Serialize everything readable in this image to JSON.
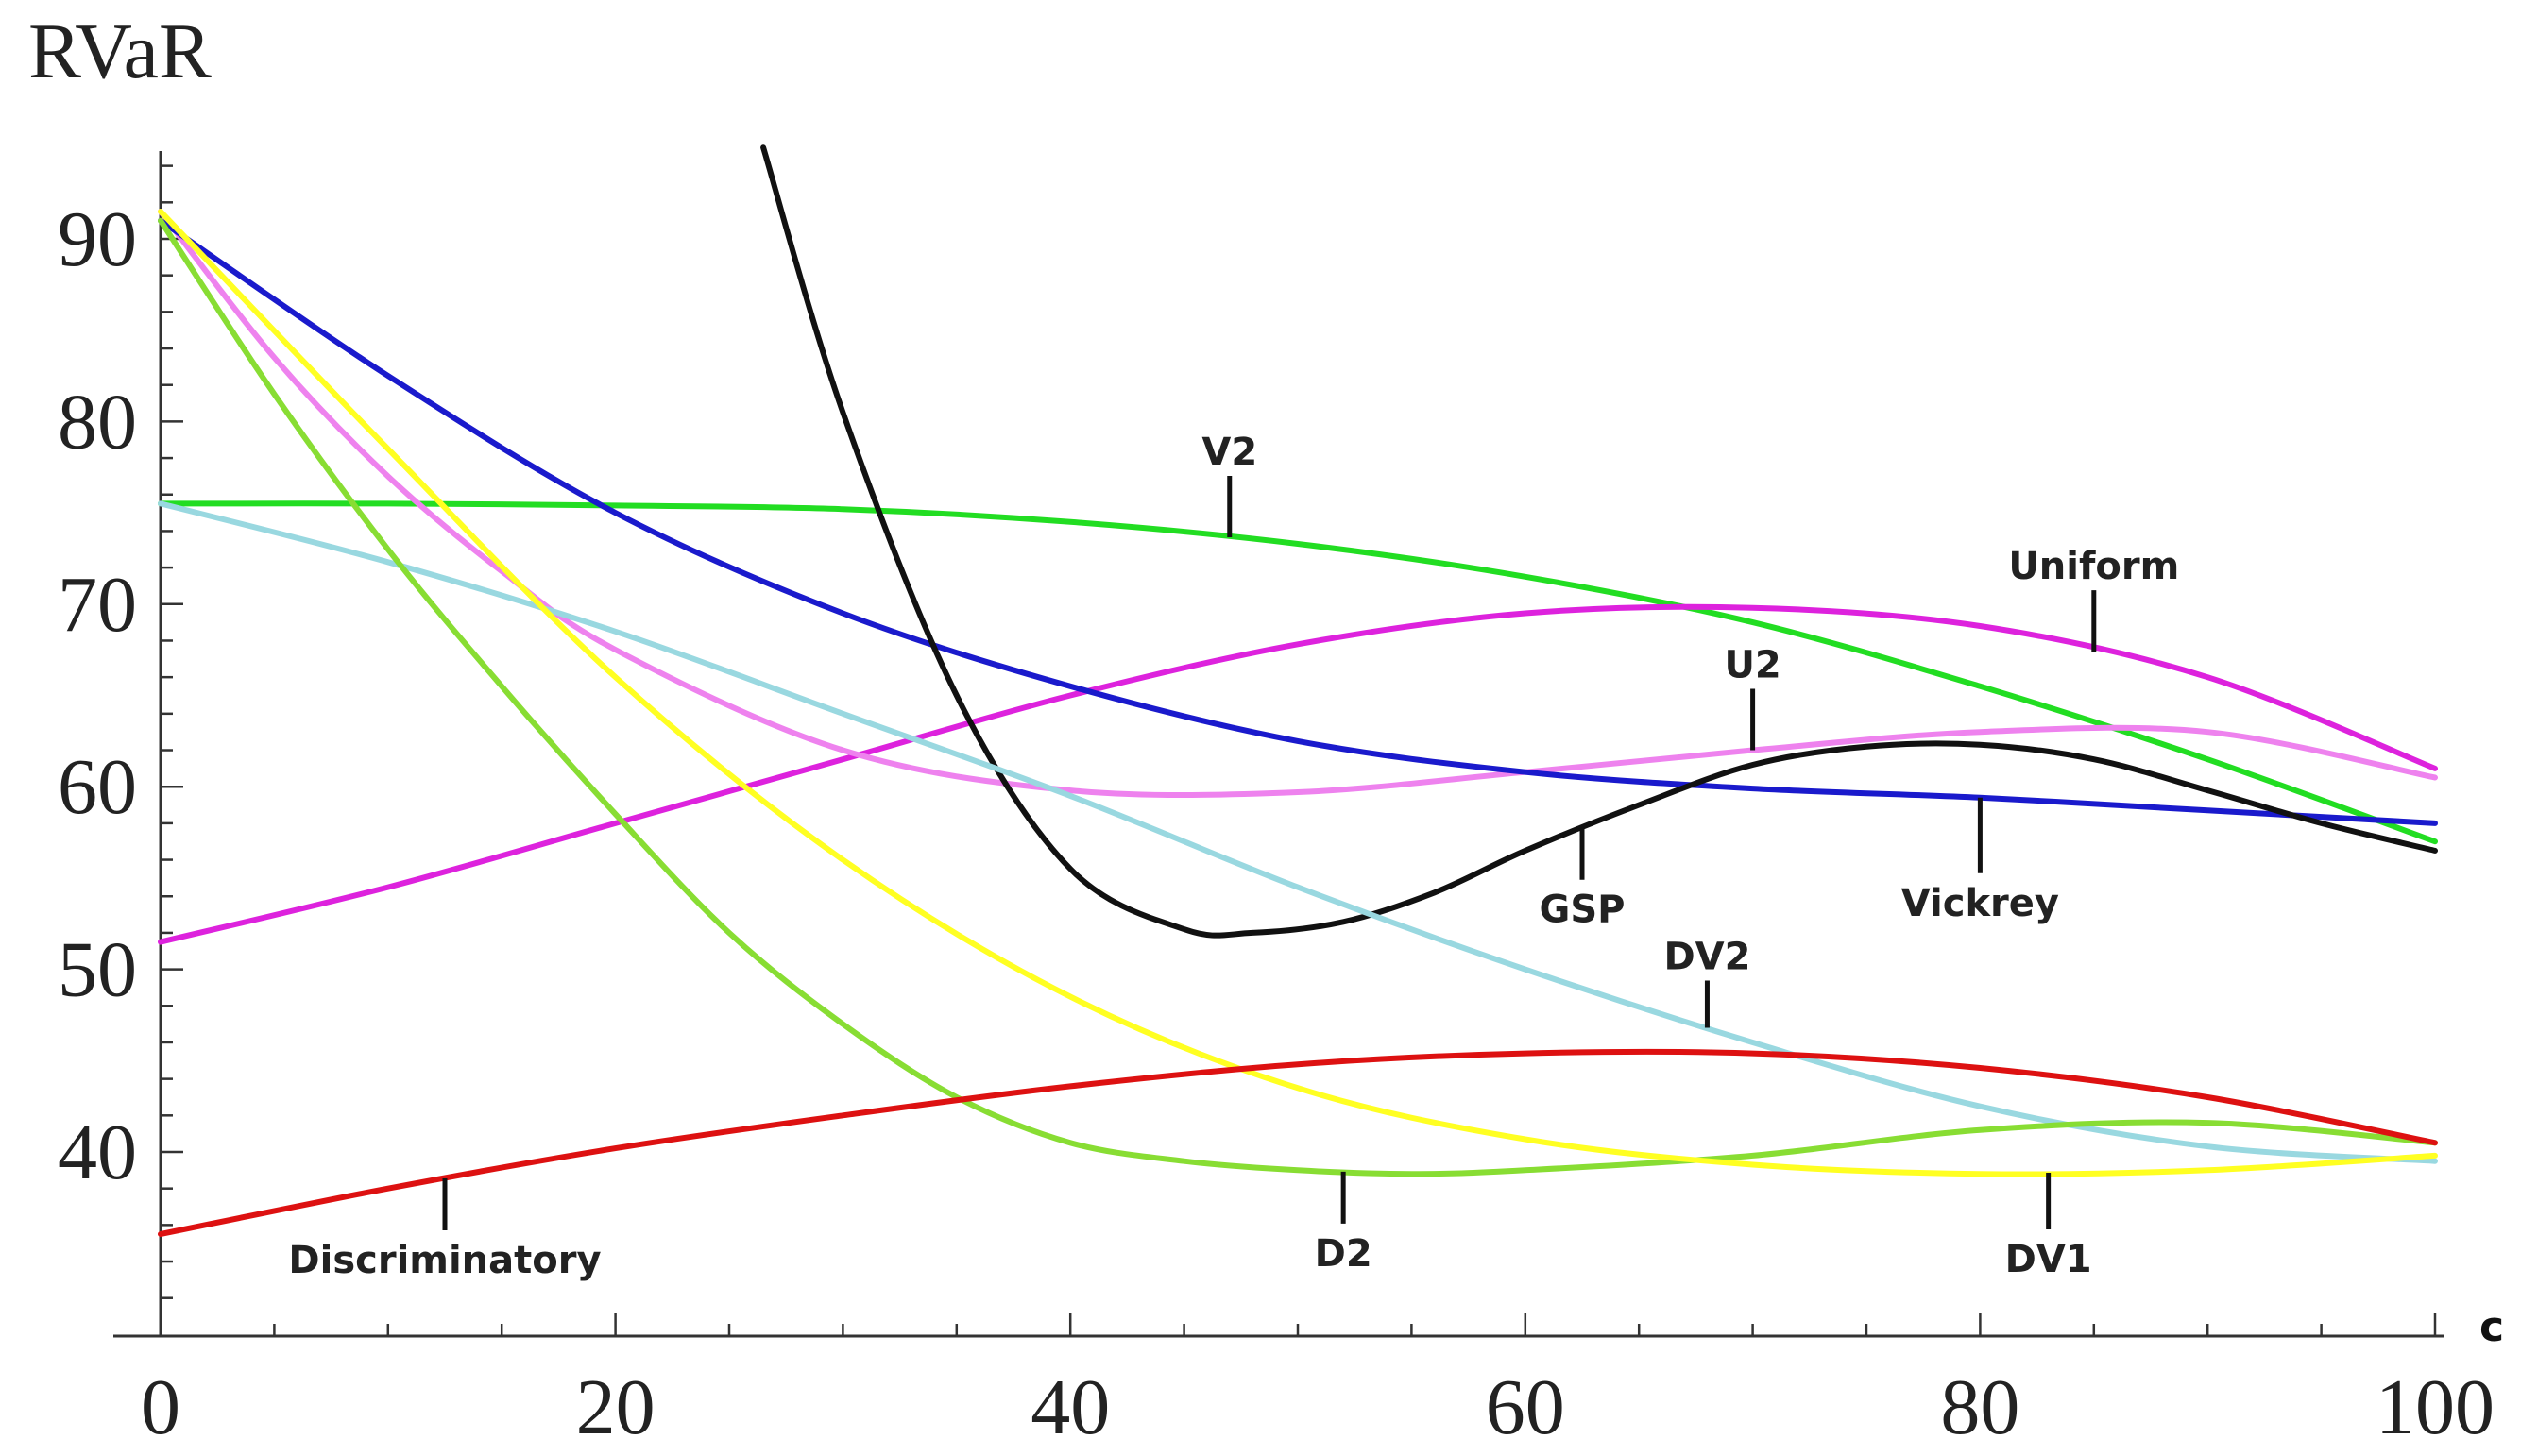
{
  "chart_data": {
    "type": "line",
    "title": "",
    "xlabel": "c",
    "ylabel": "RVaR",
    "xlim": [
      0,
      100
    ],
    "ylim": [
      30,
      95
    ],
    "x_ticks": [
      0,
      20,
      40,
      60,
      80,
      100
    ],
    "y_ticks": [
      40,
      50,
      60,
      70,
      80,
      90
    ],
    "grid": false,
    "legend": "inline labels with leader lines",
    "series": [
      {
        "name": "V2",
        "color": "#22dd22",
        "x": [
          0,
          10,
          20,
          30,
          40,
          50,
          60,
          70,
          80,
          90,
          100
        ],
        "y": [
          75.5,
          75.5,
          75.4,
          75.2,
          74.5,
          73.3,
          71.5,
          69.0,
          65.5,
          61.5,
          57.0
        ]
      },
      {
        "name": "Uniform",
        "color": "#dd22dd",
        "x": [
          0,
          10,
          20,
          30,
          40,
          50,
          60,
          70,
          80,
          90,
          100
        ],
        "y": [
          51.5,
          54.5,
          58.0,
          61.5,
          65.0,
          67.8,
          69.5,
          69.8,
          68.8,
          66.0,
          61.0
        ]
      },
      {
        "name": "U2",
        "color": "#ee82ee",
        "x": [
          0,
          5,
          10,
          15,
          20,
          30,
          40,
          50,
          60,
          70,
          80,
          90,
          100
        ],
        "y": [
          91.5,
          83.5,
          77.0,
          71.8,
          67.5,
          62.0,
          59.8,
          59.7,
          60.8,
          62.0,
          63.0,
          63.0,
          60.5
        ]
      },
      {
        "name": "Vickrey",
        "color": "#1a1acc",
        "x": [
          0,
          10,
          20,
          30,
          40,
          50,
          60,
          70,
          80,
          90,
          100
        ],
        "y": [
          91.0,
          82.5,
          75.0,
          69.5,
          65.5,
          62.5,
          60.8,
          59.9,
          59.4,
          58.7,
          58.0
        ]
      },
      {
        "name": "GSP",
        "color": "#111111",
        "x": [
          26.5,
          30,
          35,
          40,
          45,
          48,
          52,
          56,
          60,
          65,
          70,
          75,
          80,
          85,
          90,
          95,
          100
        ],
        "y": [
          95.0,
          80.5,
          65.0,
          55.5,
          52.2,
          52.0,
          52.6,
          54.2,
          56.5,
          59.0,
          61.2,
          62.2,
          62.3,
          61.5,
          59.8,
          58.0,
          56.5
        ]
      },
      {
        "name": "DV2",
        "color": "#99d8e0",
        "x": [
          0,
          10,
          20,
          30,
          40,
          50,
          60,
          70,
          80,
          90,
          100
        ],
        "y": [
          75.5,
          72.3,
          68.5,
          64.0,
          59.5,
          54.5,
          50.0,
          46.0,
          42.5,
          40.3,
          39.5
        ]
      },
      {
        "name": "D2",
        "color": "#88dd33",
        "x": [
          0,
          5,
          10,
          15,
          20,
          25,
          30,
          35,
          40,
          45,
          50,
          55,
          60,
          70,
          80,
          90,
          100
        ],
        "y": [
          91.0,
          81.5,
          73.0,
          65.5,
          58.5,
          52.0,
          47.0,
          43.0,
          40.5,
          39.5,
          39.0,
          38.8,
          39.0,
          39.8,
          41.2,
          41.6,
          40.5
        ]
      },
      {
        "name": "DV1",
        "color": "#ffff22",
        "x": [
          0,
          10,
          20,
          30,
          40,
          50,
          60,
          70,
          80,
          90,
          100
        ],
        "y": [
          91.5,
          78.5,
          66.0,
          56.0,
          48.5,
          43.5,
          40.7,
          39.3,
          38.8,
          39.0,
          39.8
        ]
      },
      {
        "name": "Discriminatory",
        "color": "#dd1111",
        "x": [
          0,
          10,
          20,
          30,
          40,
          50,
          60,
          70,
          80,
          90,
          100
        ],
        "y": [
          35.5,
          38.0,
          40.2,
          42.0,
          43.6,
          44.8,
          45.4,
          45.4,
          44.6,
          43.0,
          40.5
        ]
      }
    ],
    "labels": [
      {
        "text": "V2",
        "series": "V2",
        "at_x": 47
      },
      {
        "text": "Uniform",
        "series": "Uniform",
        "at_x": 85
      },
      {
        "text": "U2",
        "series": "U2",
        "at_x": 70
      },
      {
        "text": "GSP",
        "series": "GSP",
        "at_x": 62.5
      },
      {
        "text": "Vickrey",
        "series": "Vickrey",
        "at_x": 80
      },
      {
        "text": "DV2",
        "series": "DV2",
        "at_x": 68
      },
      {
        "text": "D2",
        "series": "D2",
        "at_x": 52
      },
      {
        "text": "DV1",
        "series": "DV1",
        "at_x": 83
      },
      {
        "text": "Discriminatory",
        "series": "Discriminatory",
        "at_x": 12.5
      }
    ]
  }
}
